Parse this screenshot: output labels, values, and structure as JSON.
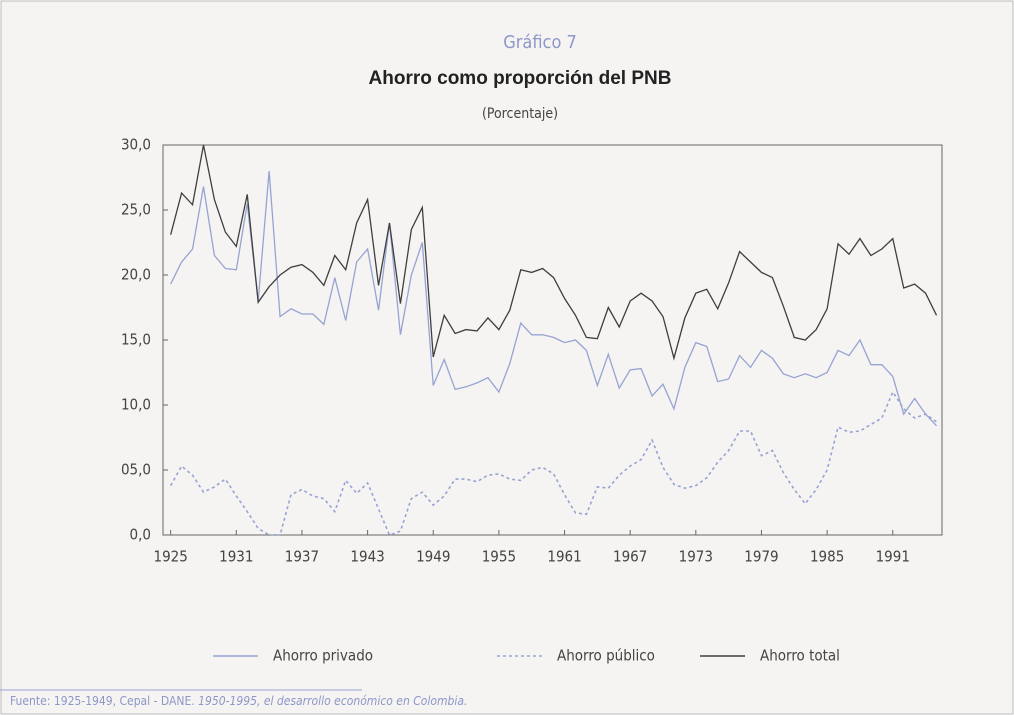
{
  "chart_data": {
    "type": "line",
    "header": "Gráfico 7",
    "title": "Ahorro como proporción del PNB",
    "subtitle": "(Porcentaje)",
    "source": [
      "Fuente: 1925-1949, Cepal - DANE.",
      "1950-1995, el desarrollo económico en Colombia."
    ],
    "x": [
      1925,
      1926,
      1927,
      1928,
      1929,
      1930,
      1931,
      1932,
      1933,
      1934,
      1935,
      1936,
      1937,
      1938,
      1939,
      1940,
      1941,
      1942,
      1943,
      1944,
      1945,
      1946,
      1947,
      1948,
      1949,
      1950,
      1951,
      1952,
      1953,
      1954,
      1955,
      1956,
      1957,
      1958,
      1959,
      1960,
      1961,
      1962,
      1963,
      1964,
      1965,
      1966,
      1967,
      1968,
      1969,
      1970,
      1971,
      1972,
      1973,
      1974,
      1975,
      1976,
      1977,
      1978,
      1979,
      1980,
      1981,
      1982,
      1983,
      1984,
      1985,
      1986,
      1987,
      1988,
      1989,
      1990,
      1991,
      1992,
      1993,
      1994,
      1995
    ],
    "series": [
      {
        "name": "Ahorro privado",
        "color": "#97a3d3",
        "linestyle": "solid",
        "values": [
          19.3,
          21.0,
          22.0,
          26.8,
          21.5,
          20.5,
          20.4,
          25.5,
          18.0,
          28.0,
          16.8,
          17.4,
          17.0,
          17.0,
          16.2,
          19.8,
          16.5,
          21.0,
          22.0,
          17.3,
          24.0,
          15.4,
          20.0,
          22.5,
          11.5,
          13.5,
          11.2,
          11.4,
          11.7,
          12.1,
          11.0,
          13.2,
          16.3,
          15.4,
          15.4,
          15.2,
          14.8,
          15.0,
          14.2,
          11.5,
          13.9,
          11.3,
          12.7,
          12.8,
          10.7,
          11.6,
          9.7,
          12.9,
          14.8,
          14.5,
          11.8,
          12.0,
          13.8,
          12.9,
          14.2,
          13.6,
          12.4,
          12.1,
          12.4,
          12.1,
          12.5,
          14.2,
          13.8,
          15.0,
          13.1,
          13.1,
          12.2,
          9.3,
          10.5,
          9.3,
          8.4
        ]
      },
      {
        "name": "Ahorro público",
        "color": "#97a3d3",
        "linestyle": "dotted",
        "values": [
          3.8,
          5.3,
          4.6,
          3.3,
          3.7,
          4.3,
          3.0,
          1.8,
          0.5,
          0.0,
          0.0,
          3.1,
          3.5,
          3.0,
          2.8,
          1.8,
          4.2,
          3.2,
          4.0,
          2.0,
          0.0,
          0.3,
          2.8,
          3.3,
          2.3,
          3.0,
          4.3,
          4.3,
          4.1,
          4.6,
          4.7,
          4.3,
          4.2,
          5.0,
          5.2,
          4.7,
          3.1,
          1.7,
          1.6,
          3.7,
          3.6,
          4.6,
          5.3,
          5.8,
          7.3,
          5.2,
          3.9,
          3.6,
          3.8,
          4.4,
          5.6,
          6.5,
          8.0,
          8.0,
          6.1,
          6.5,
          4.8,
          3.5,
          2.4,
          3.5,
          5.0,
          8.3,
          7.9,
          8.0,
          8.5,
          9.0,
          11.0,
          9.7,
          9.0,
          9.3,
          8.7
        ]
      },
      {
        "name": "Ahorro total",
        "color": "#3f3f3f",
        "linestyle": "solid",
        "values": [
          23.1,
          26.3,
          25.4,
          30.0,
          25.8,
          23.3,
          22.2,
          26.2,
          17.9,
          19.1,
          20.0,
          20.6,
          20.8,
          20.2,
          19.2,
          21.5,
          20.4,
          24.0,
          25.8,
          19.2,
          24.0,
          17.8,
          23.5,
          25.2,
          13.7,
          16.9,
          15.5,
          15.8,
          15.7,
          16.7,
          15.8,
          17.3,
          20.4,
          20.2,
          20.5,
          19.8,
          18.2,
          16.9,
          15.2,
          15.1,
          17.5,
          16.0,
          18.0,
          18.6,
          18.0,
          16.8,
          13.6,
          16.7,
          18.6,
          18.9,
          17.4,
          19.4,
          21.8,
          21.0,
          20.2,
          19.8,
          17.6,
          15.2,
          15.0,
          15.8,
          17.4,
          22.4,
          21.6,
          22.8,
          21.5,
          22.0,
          22.8,
          19.0,
          19.3,
          18.6,
          16.9
        ]
      }
    ],
    "xlim": [
      1924.3,
      1995.5
    ],
    "xticks": [
      1925,
      1931,
      1937,
      1943,
      1949,
      1955,
      1961,
      1967,
      1973,
      1979,
      1985,
      1991
    ],
    "ylim": [
      0,
      30
    ],
    "yticks": [
      {
        "value": 0,
        "label": "0,0"
      },
      {
        "value": 5,
        "label": "05,0"
      },
      {
        "value": 10,
        "label": "10,0"
      },
      {
        "value": 15,
        "label": "15,0"
      },
      {
        "value": 20,
        "label": "20,0"
      },
      {
        "value": 25,
        "label": "25,0"
      },
      {
        "value": 30,
        "label": "30,0"
      }
    ],
    "grid": false,
    "legend": "bottom"
  }
}
